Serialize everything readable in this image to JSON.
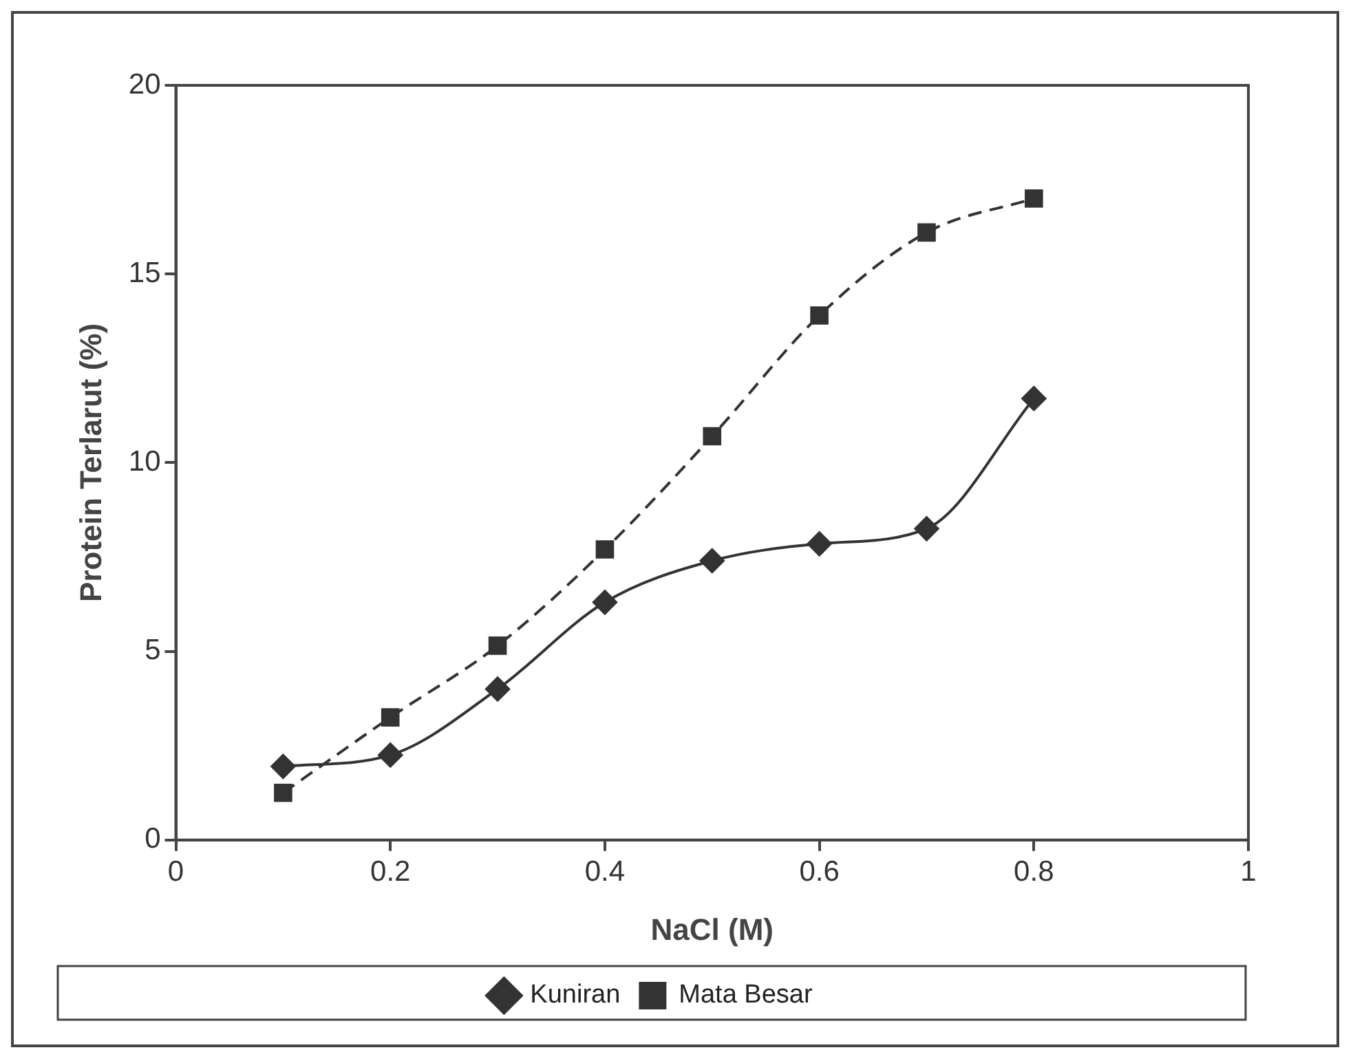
{
  "chart_data": {
    "type": "line",
    "xlabel": "NaCl (M)",
    "ylabel": "Protein Terlarut (%)",
    "x": [
      0.1,
      0.2,
      0.3,
      0.4,
      0.5,
      0.6,
      0.7,
      0.8
    ],
    "xlim": [
      0,
      1
    ],
    "xticks": [
      0,
      0.2,
      0.4,
      0.6,
      0.8,
      1
    ],
    "ylim": [
      0,
      20
    ],
    "yticks": [
      0,
      5,
      10,
      15,
      20
    ],
    "grid": false,
    "legend": "bottom",
    "series": [
      {
        "name": "Kuniran",
        "color": "#333333",
        "marker": "diamond",
        "line_style": "solid",
        "values": [
          1.95,
          2.25,
          4.0,
          6.3,
          7.4,
          7.85,
          8.25,
          11.7
        ]
      },
      {
        "name": "Mata Besar",
        "color": "#333333",
        "marker": "square",
        "line_style": "dashed",
        "values": [
          1.25,
          3.25,
          5.15,
          7.7,
          10.7,
          13.9,
          16.1,
          17.0
        ]
      }
    ]
  }
}
